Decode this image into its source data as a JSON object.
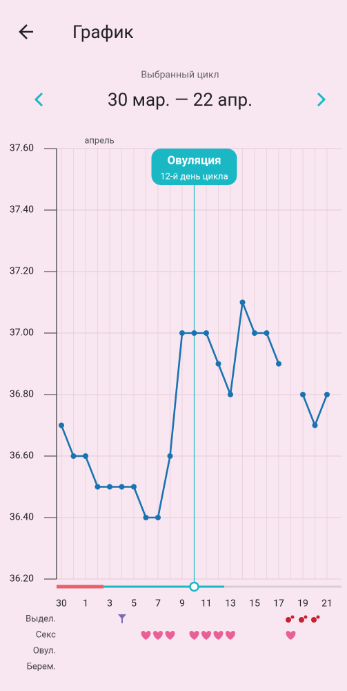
{
  "screen": {
    "title": "График",
    "cycle_caption": "Выбранный цикл",
    "cycle_range": "30 мар. — 22 апр.",
    "rows": [
      "Выдел.",
      "Секс",
      "Овул.",
      "Берем."
    ]
  },
  "chart_data": {
    "type": "line",
    "month_label": "апрель",
    "categories": [
      "30",
      null,
      "1",
      null,
      "3",
      null,
      "5",
      null,
      "7",
      null,
      "9",
      null,
      "11",
      null,
      "13",
      null,
      "15",
      null,
      "17",
      null,
      "19",
      null,
      "21"
    ],
    "series": [
      {
        "color": "#1a73b0",
        "values": [
          36.7,
          36.6,
          36.6,
          36.5,
          36.5,
          36.5,
          36.5,
          36.4,
          36.4,
          36.6,
          37.0,
          37.0,
          37.0,
          36.9,
          36.8,
          37.1,
          37.0,
          37.0,
          36.9,
          null,
          36.8,
          36.7,
          36.8
        ]
      }
    ],
    "ylim": [
      36.2,
      37.6
    ],
    "yticks": [
      {
        "value": 36.2,
        "label": "36.20"
      },
      {
        "value": 36.4,
        "label": "36.40"
      },
      {
        "value": 36.6,
        "label": "36.60"
      },
      {
        "value": 36.8,
        "label": "36.80"
      },
      {
        "value": 37.0,
        "label": "37.00"
      },
      {
        "value": 37.2,
        "label": "37.20"
      },
      {
        "value": 37.4,
        "label": "37.40"
      },
      {
        "value": 37.6,
        "label": "37.60"
      }
    ],
    "grid": true,
    "annotation": {
      "index": 11,
      "title": "Овуляция",
      "subtitle": "12-й день цикла",
      "color": "#1ab8c4"
    }
  }
}
